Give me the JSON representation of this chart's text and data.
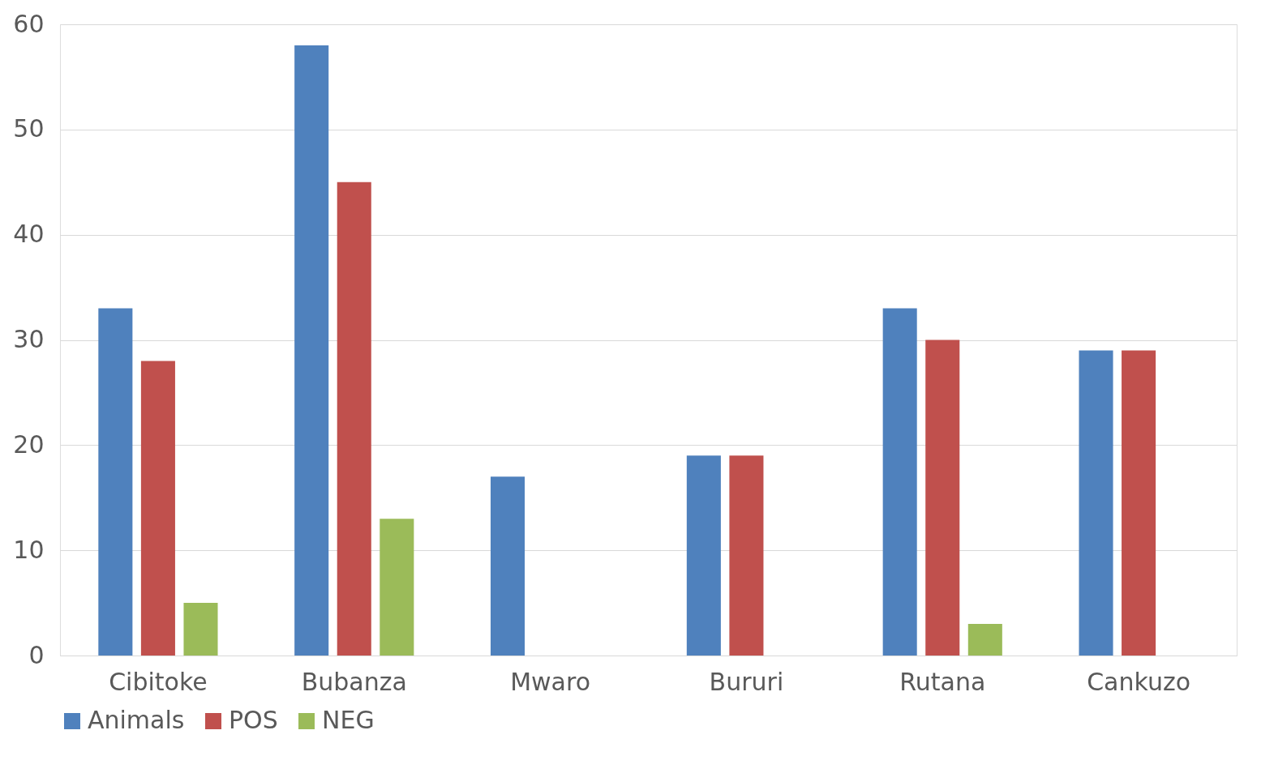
{
  "chart_data": {
    "type": "bar",
    "categories": [
      "Cibitoke",
      "Bubanza",
      "Mwaro",
      "Bururi",
      "Rutana",
      "Cankuzo"
    ],
    "series": [
      {
        "name": "Animals",
        "color": "#4f81bd",
        "values": [
          33,
          58,
          17,
          19,
          33,
          29
        ]
      },
      {
        "name": "POS",
        "color": "#c0504d",
        "values": [
          28,
          45,
          0,
          19,
          30,
          29
        ]
      },
      {
        "name": "NEG",
        "color": "#9bbb59",
        "values": [
          5,
          13,
          0,
          0,
          3,
          0
        ]
      }
    ],
    "ylim": [
      0,
      60
    ],
    "yticks": [
      0,
      10,
      20,
      30,
      40,
      50,
      60
    ],
    "grid": "y",
    "legend": "bottom"
  }
}
